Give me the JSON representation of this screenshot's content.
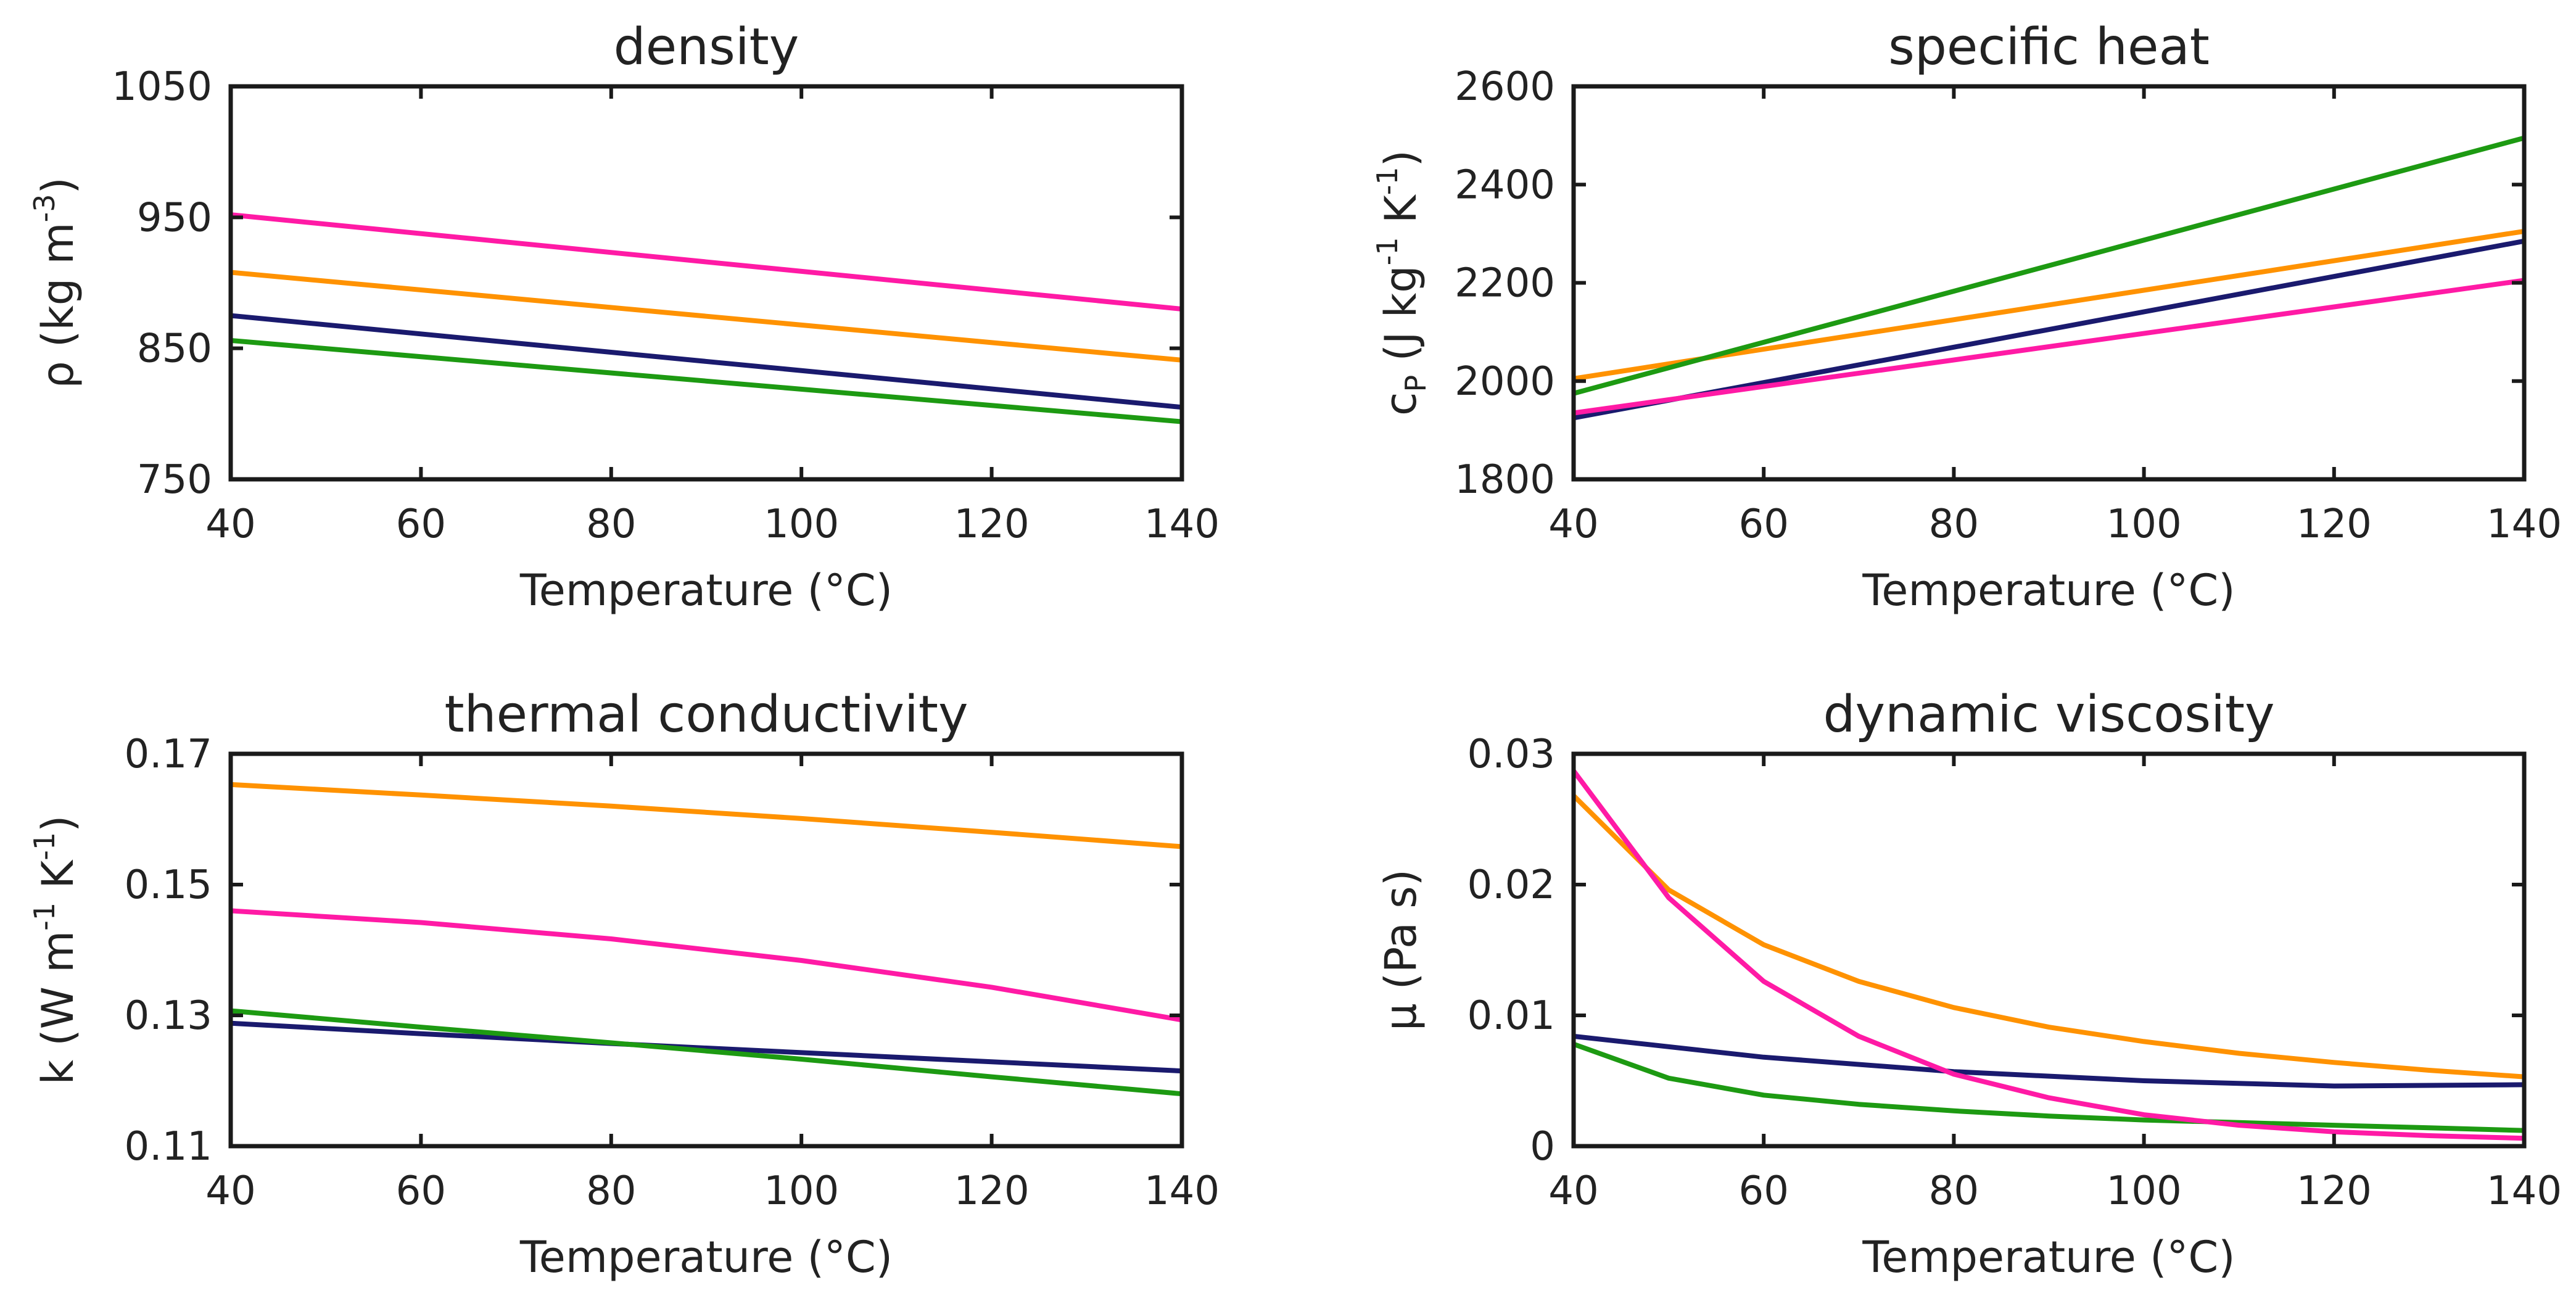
{
  "colors": {
    "navy": "#1a1a6e",
    "orange": "#ff9200",
    "green": "#1d9a12",
    "magenta": "#ff1aa5"
  },
  "chart_data": [
    {
      "type": "line",
      "title": "density",
      "xlabel": "Temperature (°C)",
      "ylabel_parts": [
        "ρ (kg m",
        "-3",
        ")"
      ],
      "xlim": [
        40,
        140
      ],
      "ylim": [
        750,
        1050
      ],
      "xticks": [
        40,
        60,
        80,
        100,
        120,
        140
      ],
      "yticks": [
        750,
        850,
        950,
        1050
      ],
      "xtick_labels": [
        "40",
        "60",
        "80",
        "100",
        "120",
        "140"
      ],
      "ytick_labels": [
        "750",
        "850",
        "950",
        "1050"
      ],
      "series": [
        {
          "name": "navy",
          "x": [
            40,
            140
          ],
          "y": [
            875,
            805
          ]
        },
        {
          "name": "orange",
          "x": [
            40,
            140
          ],
          "y": [
            908,
            841
          ]
        },
        {
          "name": "green",
          "x": [
            40,
            140
          ],
          "y": [
            856,
            794
          ]
        },
        {
          "name": "magenta",
          "x": [
            40,
            140
          ],
          "y": [
            952,
            880
          ]
        }
      ]
    },
    {
      "type": "line",
      "title": "specific heat",
      "xlabel": "Temperature (°C)",
      "ylabel_parts": [
        "c",
        "P",
        " (J kg",
        "-1",
        " K",
        "-1",
        ")"
      ],
      "xlim": [
        40,
        140
      ],
      "ylim": [
        1800,
        2600
      ],
      "xticks": [
        40,
        60,
        80,
        100,
        120,
        140
      ],
      "yticks": [
        1800,
        2000,
        2200,
        2400,
        2600
      ],
      "xtick_labels": [
        "40",
        "60",
        "80",
        "100",
        "120",
        "140"
      ],
      "ytick_labels": [
        "1800",
        "2000",
        "2200",
        "2400",
        "2600"
      ],
      "series": [
        {
          "name": "navy",
          "x": [
            40,
            140
          ],
          "y": [
            1925,
            2285
          ]
        },
        {
          "name": "orange",
          "x": [
            40,
            140
          ],
          "y": [
            2005,
            2305
          ]
        },
        {
          "name": "green",
          "x": [
            40,
            140
          ],
          "y": [
            1975,
            2495
          ]
        },
        {
          "name": "magenta",
          "x": [
            40,
            140
          ],
          "y": [
            1935,
            2205
          ]
        }
      ]
    },
    {
      "type": "line",
      "title": "thermal conductivity",
      "xlabel": "Temperature (°C)",
      "ylabel_parts": [
        "k (W m",
        "-1",
        " K",
        "-1",
        ")"
      ],
      "xlim": [
        40,
        140
      ],
      "ylim": [
        0.11,
        0.17
      ],
      "xticks": [
        40,
        60,
        80,
        100,
        120,
        140
      ],
      "yticks": [
        0.11,
        0.13,
        0.15,
        0.17
      ],
      "xtick_labels": [
        "40",
        "60",
        "80",
        "100",
        "120",
        "140"
      ],
      "ytick_labels": [
        "0.11",
        "0.13",
        "0.15",
        "0.17"
      ],
      "series": [
        {
          "name": "navy",
          "x": [
            40,
            60,
            80,
            100,
            120,
            140
          ],
          "y": [
            0.1288,
            0.1272,
            0.1257,
            0.1243,
            0.1229,
            0.1215
          ]
        },
        {
          "name": "orange",
          "x": [
            40,
            60,
            80,
            100,
            120,
            140
          ],
          "y": [
            0.1653,
            0.1637,
            0.162,
            0.1601,
            0.158,
            0.1558
          ]
        },
        {
          "name": "green",
          "x": [
            40,
            60,
            80,
            100,
            120,
            140
          ],
          "y": [
            0.1307,
            0.1282,
            0.1258,
            0.1233,
            0.1206,
            0.118
          ]
        },
        {
          "name": "magenta",
          "x": [
            40,
            60,
            80,
            100,
            120,
            140
          ],
          "y": [
            0.146,
            0.1442,
            0.1417,
            0.1384,
            0.1343,
            0.1293
          ]
        }
      ]
    },
    {
      "type": "line",
      "title": "dynamic viscosity",
      "xlabel": "Temperature (°C)",
      "ylabel_parts": [
        "μ (Pa s)"
      ],
      "xlim": [
        40,
        140
      ],
      "ylim": [
        0,
        0.03
      ],
      "xticks": [
        40,
        60,
        80,
        100,
        120,
        140
      ],
      "yticks": [
        0,
        0.01,
        0.02,
        0.03
      ],
      "xtick_labels": [
        "40",
        "60",
        "80",
        "100",
        "120",
        "140"
      ],
      "ytick_labels": [
        "0",
        "0.01",
        "0.02",
        "0.03"
      ],
      "series": [
        {
          "name": "navy",
          "x": [
            40,
            60,
            80,
            100,
            120,
            140
          ],
          "y": [
            0.0084,
            0.0068,
            0.0057,
            0.005,
            0.0046,
            0.0047
          ]
        },
        {
          "name": "orange",
          "x": [
            40,
            50,
            60,
            70,
            80,
            90,
            100,
            110,
            120,
            130,
            140
          ],
          "y": [
            0.0268,
            0.0196,
            0.0154,
            0.0126,
            0.0106,
            0.0091,
            0.008,
            0.0071,
            0.0064,
            0.0058,
            0.0053
          ]
        },
        {
          "name": "green",
          "x": [
            40,
            50,
            60,
            70,
            80,
            90,
            100,
            110,
            120,
            130,
            140
          ],
          "y": [
            0.0078,
            0.0052,
            0.0039,
            0.0032,
            0.0027,
            0.0023,
            0.002,
            0.0018,
            0.0016,
            0.0014,
            0.0012
          ]
        },
        {
          "name": "magenta",
          "x": [
            40,
            50,
            60,
            70,
            80,
            90,
            100,
            110,
            120,
            130,
            140
          ],
          "y": [
            0.0287,
            0.019,
            0.0126,
            0.0084,
            0.0055,
            0.0037,
            0.0024,
            0.0016,
            0.0011,
            0.0008,
            0.0006
          ]
        }
      ]
    }
  ]
}
